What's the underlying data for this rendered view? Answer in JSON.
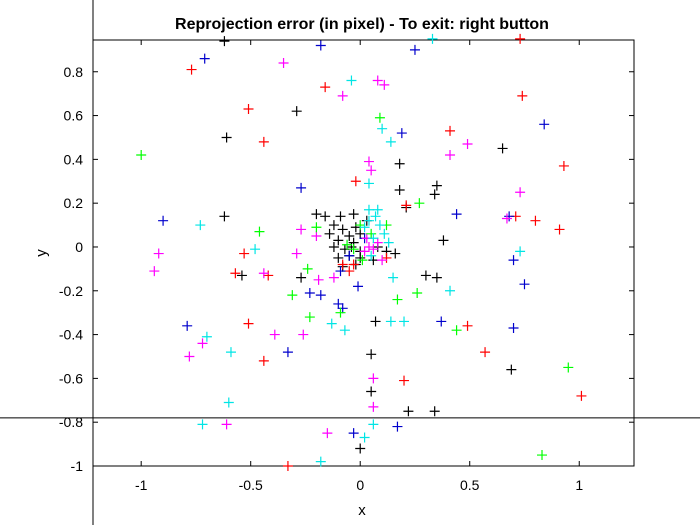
{
  "chart_data": {
    "type": "scatter",
    "title": "Reprojection error (in pixel) - To exit: right button",
    "xlabel": "x",
    "ylabel": "y",
    "xlim": [
      -1.22,
      1.25
    ],
    "ylim": [
      -1.0,
      0.945
    ],
    "xticks": [
      "-1",
      "-0.5",
      "0",
      "0.5",
      "1"
    ],
    "xtick_values": [
      -1,
      -0.5,
      0,
      0.5,
      1
    ],
    "yticks": [
      "0.8",
      "0.6",
      "0.4",
      "0.2",
      "0",
      "-0.2",
      "-0.4",
      "-0.6",
      "-0.8",
      "-1"
    ],
    "ytick_values": [
      0.8,
      0.6,
      0.4,
      0.2,
      0,
      -0.2,
      -0.4,
      -0.6,
      -0.8,
      -1
    ],
    "grid": false,
    "legend": "none",
    "marker": "+",
    "crosshair": {
      "x": -1.22,
      "y": -0.78
    },
    "series": [
      {
        "color": "#000000",
        "points": [
          [
            -0.62,
            0.94
          ],
          [
            -0.29,
            0.62
          ],
          [
            -0.61,
            0.5
          ],
          [
            0.65,
            0.45
          ],
          [
            0.18,
            0.38
          ],
          [
            0.18,
            0.26
          ],
          [
            0.35,
            0.28
          ],
          [
            0.34,
            0.24
          ],
          [
            0.21,
            0.18
          ],
          [
            -0.62,
            0.14
          ],
          [
            -0.2,
            0.15
          ],
          [
            -0.16,
            0.14
          ],
          [
            -0.09,
            0.14
          ],
          [
            -0.03,
            0.15
          ],
          [
            -0.12,
            0.1
          ],
          [
            -0.08,
            0.08
          ],
          [
            -0.02,
            0.09
          ],
          [
            0.03,
            0.12
          ],
          [
            -0.14,
            0.06
          ],
          [
            -0.1,
            0.03
          ],
          [
            -0.05,
            0.05
          ],
          [
            0.0,
            0.06
          ],
          [
            -0.12,
            0.0
          ],
          [
            -0.07,
            -0.01
          ],
          [
            -0.03,
            0.02
          ],
          [
            -0.1,
            -0.05
          ],
          [
            -0.05,
            -0.04
          ],
          [
            0.0,
            -0.02
          ],
          [
            0.08,
            0.0
          ],
          [
            0.12,
            -0.02
          ],
          [
            0.16,
            -0.03
          ],
          [
            -0.08,
            -0.09
          ],
          [
            -0.02,
            -0.08
          ],
          [
            0.06,
            -0.06
          ],
          [
            0.38,
            0.03
          ],
          [
            0.3,
            -0.13
          ],
          [
            0.35,
            -0.14
          ],
          [
            -0.54,
            -0.13
          ],
          [
            -0.27,
            -0.14
          ],
          [
            0.07,
            -0.34
          ],
          [
            0.05,
            -0.49
          ],
          [
            0.69,
            -0.56
          ],
          [
            0.05,
            -0.66
          ],
          [
            0.22,
            -0.75
          ],
          [
            0.0,
            -0.92
          ],
          [
            0.34,
            -0.75
          ],
          [
            0.0,
            -0.05
          ],
          [
            -0.04,
            0.0
          ]
        ]
      },
      {
        "color": "#ff0000",
        "points": [
          [
            -0.77,
            0.81
          ],
          [
            -0.51,
            0.63
          ],
          [
            -0.44,
            0.48
          ],
          [
            0.73,
            0.95
          ],
          [
            -0.16,
            0.73
          ],
          [
            0.74,
            0.69
          ],
          [
            0.41,
            0.53
          ],
          [
            0.93,
            0.37
          ],
          [
            -0.02,
            0.3
          ],
          [
            0.21,
            0.19
          ],
          [
            0.71,
            0.14
          ],
          [
            0.8,
            0.12
          ],
          [
            0.91,
            0.08
          ],
          [
            -0.53,
            -0.03
          ],
          [
            -0.57,
            -0.12
          ],
          [
            -0.42,
            -0.13
          ],
          [
            -0.08,
            -0.08
          ],
          [
            -0.05,
            -0.11
          ],
          [
            -0.03,
            -0.08
          ],
          [
            0.12,
            -0.05
          ],
          [
            -0.51,
            -0.35
          ],
          [
            -0.44,
            -0.52
          ],
          [
            0.49,
            -0.36
          ],
          [
            0.57,
            -0.48
          ],
          [
            0.2,
            -0.61
          ],
          [
            1.01,
            -0.68
          ],
          [
            -0.33,
            -1.0
          ]
        ]
      },
      {
        "color": "#0000cc",
        "points": [
          [
            -0.71,
            0.86
          ],
          [
            -0.18,
            0.92
          ],
          [
            0.25,
            0.9
          ],
          [
            0.84,
            0.56
          ],
          [
            0.19,
            0.52
          ],
          [
            -0.27,
            0.27
          ],
          [
            0.68,
            0.14
          ],
          [
            0.44,
            0.15
          ],
          [
            -0.9,
            0.12
          ],
          [
            0.7,
            -0.06
          ],
          [
            0.75,
            -0.17
          ],
          [
            -0.09,
            -0.11
          ],
          [
            -0.01,
            -0.18
          ],
          [
            -0.23,
            -0.21
          ],
          [
            -0.18,
            -0.22
          ],
          [
            -0.1,
            -0.26
          ],
          [
            -0.08,
            -0.28
          ],
          [
            -0.79,
            -0.36
          ],
          [
            -0.33,
            -0.48
          ],
          [
            0.7,
            -0.37
          ],
          [
            0.37,
            -0.34
          ],
          [
            0.17,
            -0.82
          ],
          [
            -0.03,
            -0.85
          ],
          [
            -0.05,
            -0.04
          ],
          [
            0.02,
            0.04
          ]
        ]
      },
      {
        "color": "#ff00ff",
        "points": [
          [
            -0.35,
            0.84
          ],
          [
            -0.08,
            0.69
          ],
          [
            0.08,
            0.76
          ],
          [
            0.11,
            0.74
          ],
          [
            0.49,
            0.47
          ],
          [
            0.41,
            0.42
          ],
          [
            0.73,
            0.25
          ],
          [
            0.67,
            0.13
          ],
          [
            0.05,
            0.35
          ],
          [
            0.04,
            0.39
          ],
          [
            -0.27,
            0.08
          ],
          [
            -0.2,
            0.05
          ],
          [
            -0.29,
            -0.03
          ],
          [
            -0.92,
            -0.03
          ],
          [
            -0.94,
            -0.11
          ],
          [
            -0.44,
            -0.12
          ],
          [
            -0.19,
            -0.15
          ],
          [
            -0.12,
            -0.14
          ],
          [
            0.04,
            0.0
          ],
          [
            0.06,
            -0.01
          ],
          [
            0.02,
            -0.02
          ],
          [
            0.08,
            0.02
          ],
          [
            0.03,
            0.04
          ],
          [
            0.1,
            -0.06
          ],
          [
            -0.39,
            -0.4
          ],
          [
            -0.72,
            -0.44
          ],
          [
            -0.78,
            -0.5
          ],
          [
            -0.26,
            -0.4
          ],
          [
            0.06,
            -0.6
          ],
          [
            0.06,
            -0.73
          ],
          [
            -0.61,
            -0.81
          ],
          [
            -0.15,
            -0.85
          ]
        ]
      },
      {
        "color": "#00ff00",
        "points": [
          [
            -1.0,
            0.42
          ],
          [
            0.09,
            0.59
          ],
          [
            -0.46,
            0.07
          ],
          [
            0.27,
            0.2
          ],
          [
            -0.2,
            0.09
          ],
          [
            0.01,
            -0.06
          ],
          [
            -0.03,
            -0.01
          ],
          [
            -0.06,
            0.01
          ],
          [
            0.12,
            0.1
          ],
          [
            0.0,
            0.1
          ],
          [
            -0.24,
            -0.1
          ],
          [
            -0.31,
            -0.22
          ],
          [
            -0.23,
            -0.32
          ],
          [
            -0.09,
            -0.3
          ],
          [
            0.17,
            -0.24
          ],
          [
            0.26,
            -0.21
          ],
          [
            0.44,
            -0.38
          ],
          [
            0.95,
            -0.55
          ],
          [
            0.83,
            -0.95
          ],
          [
            0.05,
            0.06
          ]
        ]
      },
      {
        "color": "#00e5e5",
        "points": [
          [
            0.33,
            0.95
          ],
          [
            -0.04,
            0.76
          ],
          [
            0.1,
            0.54
          ],
          [
            0.14,
            0.48
          ],
          [
            0.04,
            0.29
          ],
          [
            -0.73,
            0.1
          ],
          [
            0.73,
            -0.02
          ],
          [
            -0.48,
            -0.01
          ],
          [
            0.41,
            -0.2
          ],
          [
            -0.59,
            -0.48
          ],
          [
            -0.7,
            -0.41
          ],
          [
            -0.13,
            -0.35
          ],
          [
            -0.07,
            -0.38
          ],
          [
            0.14,
            -0.34
          ],
          [
            0.2,
            -0.34
          ],
          [
            -0.6,
            -0.71
          ],
          [
            -0.72,
            -0.81
          ],
          [
            0.06,
            -0.81
          ],
          [
            0.02,
            -0.87
          ],
          [
            -0.18,
            -0.98
          ],
          [
            0.04,
            0.12
          ],
          [
            0.07,
            0.14
          ],
          [
            0.09,
            0.1
          ],
          [
            0.02,
            0.09
          ],
          [
            0.11,
            0.06
          ],
          [
            0.06,
            0.04
          ],
          [
            0.13,
            0.02
          ],
          [
            0.04,
            0.17
          ],
          [
            0.08,
            0.17
          ],
          [
            0.15,
            -0.14
          ],
          [
            0.05,
            -0.04
          ]
        ]
      }
    ]
  }
}
